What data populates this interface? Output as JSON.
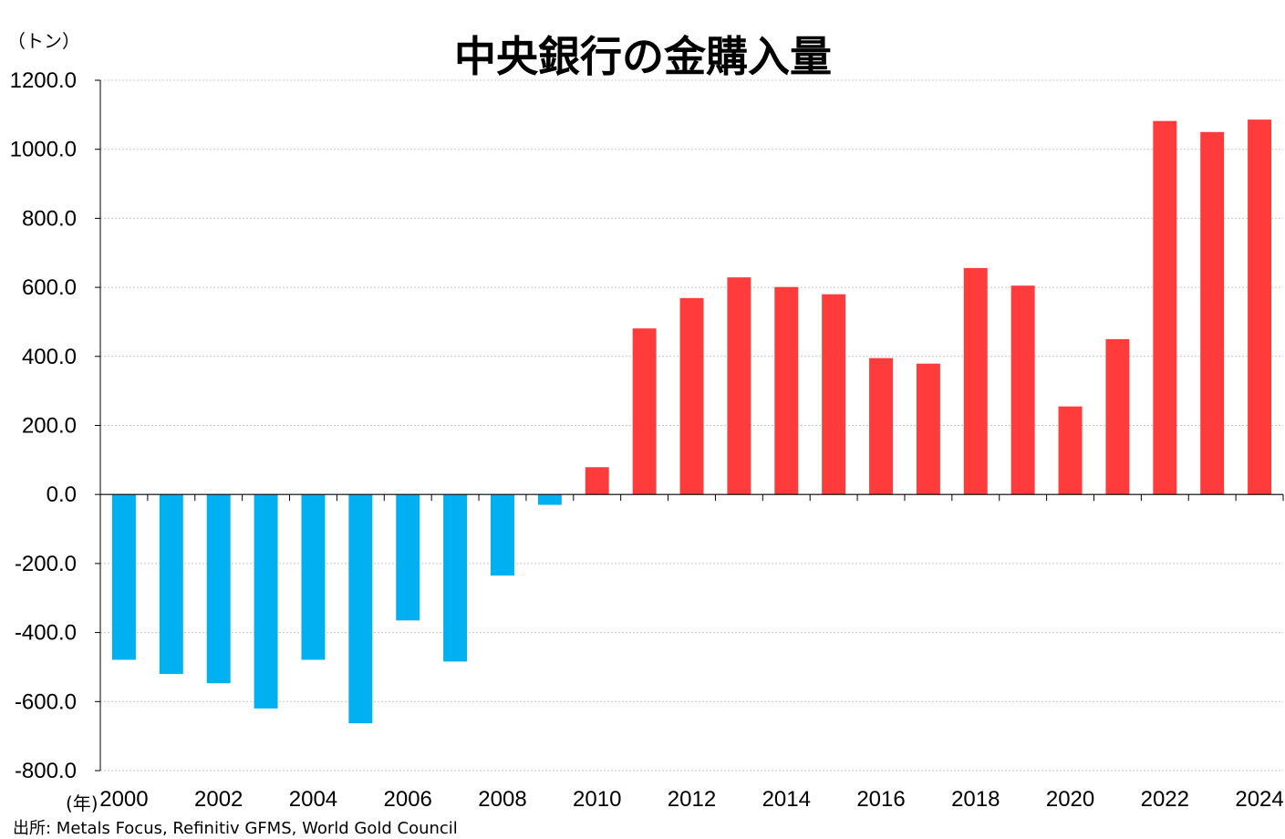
{
  "chart_data": {
    "type": "bar",
    "title": "中央銀行の金購入量",
    "ylabel": "（トン）",
    "xlabel": "(年)",
    "source": "出所: Metals Focus, Refinitiv GFMS, World Gold Council",
    "ylim": [
      -800,
      1200
    ],
    "yticks": [
      "1200.0",
      "1000.0",
      "800.0",
      "600.0",
      "400.0",
      "200.0",
      "0.0",
      "-200.0",
      "-400.0",
      "-600.0",
      "-800.0"
    ],
    "ytick_values": [
      1200,
      1000,
      800,
      600,
      400,
      200,
      0,
      -200,
      -400,
      -600,
      -800
    ],
    "categories": [
      "2000",
      "2001",
      "2002",
      "2003",
      "2004",
      "2005",
      "2006",
      "2007",
      "2008",
      "2009",
      "2010",
      "2011",
      "2012",
      "2013",
      "2014",
      "2015",
      "2016",
      "2017",
      "2018",
      "2019",
      "2020",
      "2021",
      "2022",
      "2023",
      "2024"
    ],
    "xtick_labels": [
      "2000",
      "2002",
      "2004",
      "2006",
      "2008",
      "2010",
      "2012",
      "2014",
      "2016",
      "2018",
      "2020",
      "2022",
      "2024"
    ],
    "values": [
      -479,
      -520,
      -547,
      -620,
      -479,
      -663,
      -365,
      -484,
      -235,
      -30,
      79,
      481,
      569,
      629,
      601,
      580,
      395,
      379,
      656,
      605,
      255,
      450,
      1082,
      1050,
      1086
    ],
    "grid": true,
    "colors": {
      "negative": "#00b0f0",
      "positive": "#ff3b3b",
      "grid": "#c8c8c8",
      "axis": "#000000"
    }
  }
}
